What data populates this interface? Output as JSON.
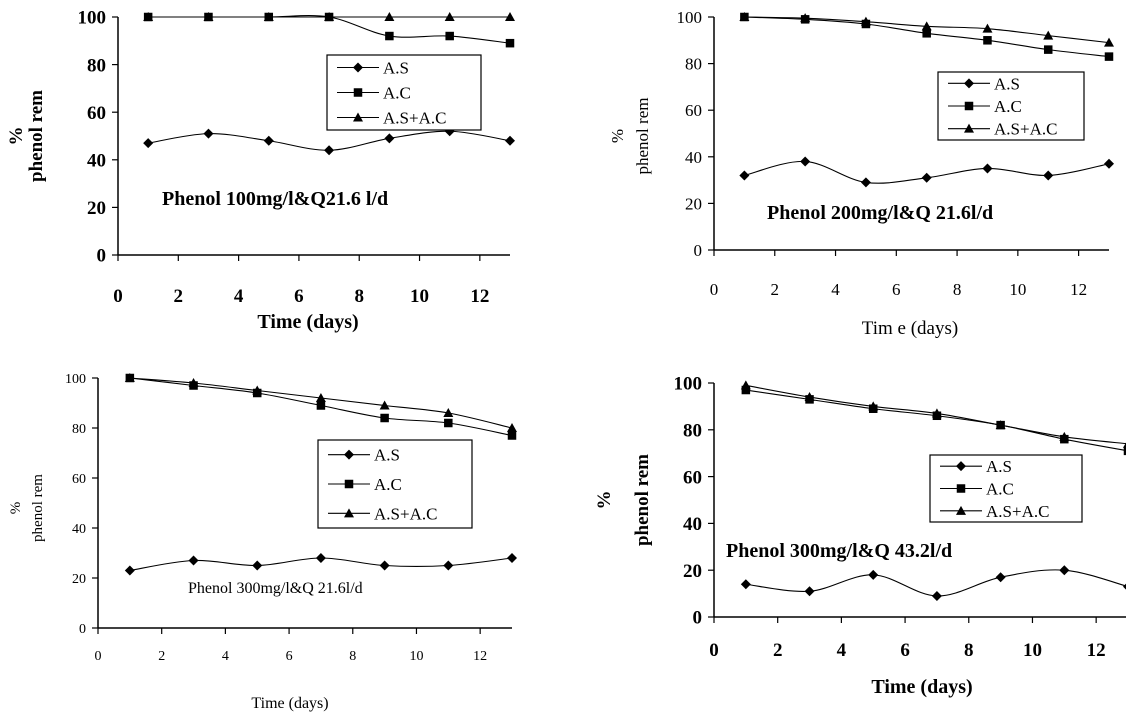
{
  "chart_data": [
    {
      "type": "line",
      "title": "Phenol 100mg/l&Q21.6 l/d",
      "xlabel": "Time (days)",
      "ylabel": [
        "%",
        "phenol rem"
      ],
      "xlim": [
        0,
        12
      ],
      "ylim": [
        0,
        100
      ],
      "xticks": [
        "0",
        "2",
        "4",
        "6",
        "8",
        "10",
        "12"
      ],
      "yticks": [
        "0",
        "20",
        "40",
        "60",
        "80",
        "100"
      ],
      "grid": false,
      "legend_position": "top-right",
      "x": [
        1,
        3,
        5,
        7,
        9,
        11,
        13
      ],
      "series": [
        {
          "name": "A.S",
          "marker": "diamond",
          "values": [
            47,
            51,
            48,
            44,
            49,
            52,
            48
          ]
        },
        {
          "name": "A.C",
          "marker": "square",
          "values": [
            100,
            100,
            100,
            100,
            92,
            92,
            89
          ]
        },
        {
          "name": "A.S+A.C",
          "marker": "triangle",
          "values": [
            100,
            100,
            100,
            100,
            100,
            100,
            100
          ]
        }
      ]
    },
    {
      "type": "line",
      "title": "Phenol 200mg/l&Q 21.6l/d",
      "xlabel": "Tim e (days)",
      "ylabel": [
        "%",
        "phenol rem"
      ],
      "xlim": [
        0,
        12
      ],
      "ylim": [
        0,
        100
      ],
      "xticks": [
        "0",
        "2",
        "4",
        "6",
        "8",
        "10",
        "12"
      ],
      "yticks": [
        "0",
        "20",
        "40",
        "60",
        "80",
        "100"
      ],
      "grid": false,
      "legend_position": "right",
      "x": [
        1,
        3,
        5,
        7,
        9,
        11,
        13
      ],
      "series": [
        {
          "name": "A.S",
          "marker": "diamond",
          "values": [
            32,
            38,
            29,
            31,
            35,
            32,
            37
          ]
        },
        {
          "name": "A.C",
          "marker": "square",
          "values": [
            100,
            99,
            97,
            93,
            90,
            86,
            83
          ]
        },
        {
          "name": "A.S+A.C",
          "marker": "triangle",
          "values": [
            100,
            99.5,
            98,
            96,
            95,
            92,
            89
          ]
        }
      ]
    },
    {
      "type": "line",
      "title": "Phenol 300mg/l&Q 21.6l/d",
      "xlabel": "Time (days)",
      "ylabel": [
        "%",
        "phenol rem"
      ],
      "xlim": [
        0,
        12
      ],
      "ylim": [
        0,
        100
      ],
      "xticks": [
        "0",
        "2",
        "4",
        "6",
        "8",
        "10",
        "12"
      ],
      "yticks": [
        "0",
        "20",
        "40",
        "60",
        "80",
        "100"
      ],
      "grid": false,
      "legend_position": "right",
      "x": [
        1,
        3,
        5,
        7,
        9,
        11,
        13
      ],
      "series": [
        {
          "name": "A.S",
          "marker": "diamond",
          "values": [
            23,
            27,
            25,
            28,
            25,
            25,
            28
          ]
        },
        {
          "name": "A.C",
          "marker": "square",
          "values": [
            100,
            97,
            94,
            89,
            84,
            82,
            77
          ]
        },
        {
          "name": "A.S+A.C",
          "marker": "triangle",
          "values": [
            100,
            98,
            95,
            92,
            89,
            86,
            80
          ]
        }
      ]
    },
    {
      "type": "line",
      "title": "Phenol 300mg/l&Q 43.2l/d",
      "xlabel": "Time (days)",
      "ylabel": [
        "%",
        "phenol rem"
      ],
      "xlim": [
        0,
        12
      ],
      "ylim": [
        0,
        100
      ],
      "xticks": [
        "0",
        "2",
        "4",
        "6",
        "8",
        "10",
        "12"
      ],
      "yticks": [
        "0",
        "20",
        "40",
        "60",
        "80",
        "100"
      ],
      "grid": false,
      "legend_position": "right",
      "x": [
        1,
        3,
        5,
        7,
        9,
        11,
        13
      ],
      "series": [
        {
          "name": "A.S",
          "marker": "diamond",
          "values": [
            14,
            11,
            18,
            9,
            17,
            20,
            13
          ]
        },
        {
          "name": "A.C",
          "marker": "square",
          "values": [
            97,
            93,
            89,
            86,
            82,
            76,
            71
          ]
        },
        {
          "name": "A.S+A.C",
          "marker": "triangle",
          "values": [
            99,
            94,
            90,
            87,
            82,
            77,
            74
          ]
        }
      ]
    }
  ]
}
